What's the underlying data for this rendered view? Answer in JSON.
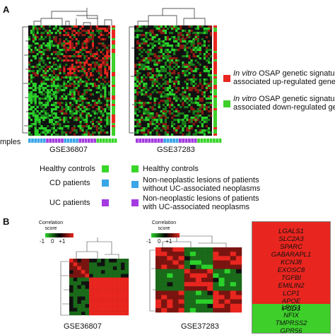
{
  "panel_a": {
    "label": "A",
    "partial_label": "mples",
    "heatmaps": [
      {
        "caption": "GSE36807"
      },
      {
        "caption": "GSE37283"
      }
    ],
    "signature_legend": [
      {
        "line1_italic": "In vitro",
        "line1_rest": " OSAP genetic signatur",
        "line2": "associated up-regulated gene",
        "color": "#e8261f"
      },
      {
        "line1_italic": "In vitro",
        "line1_rest": " OSAP genetic signatur",
        "line2": "associated down-regulated ge",
        "color": "#3ecf2a"
      }
    ],
    "sample_legend_left": [
      {
        "label": "Healthy controls",
        "color": "#39d62a"
      },
      {
        "label": "CD patients",
        "color": "#3aa6e8"
      },
      {
        "label": "UC patients",
        "color": "#a53be0"
      }
    ],
    "sample_legend_right": [
      {
        "line1": "Healthy controls",
        "line2": "",
        "color": "#39d62a"
      },
      {
        "line1": "Non-neoplastic lesions of patients",
        "line2": "without UC-associated neoplasms",
        "color": "#3aa6e8"
      },
      {
        "line1": "Non-neoplastic lesions of patients",
        "line2": "with UC-associated neoplasms",
        "color": "#a53be0"
      }
    ]
  },
  "panel_b": {
    "label": "B",
    "correlation": [
      {
        "caption": "GSE36807",
        "scale_title": "Correlation score",
        "ticks": [
          "-1",
          "0",
          "+1"
        ]
      },
      {
        "caption": "GSE37283",
        "scale_title": "Correlation score",
        "ticks": [
          "-1",
          "0",
          "+1"
        ]
      }
    ],
    "genes_up": [
      "LGALS1",
      "SLC2A3",
      "SPARC",
      "GABARAPL1",
      "KCNJ8",
      "EXOSC8",
      "TGFBI",
      "EMILIN2",
      "LCP1",
      "APOE",
      "FGD3"
    ],
    "genes_down": [
      "LRIG1",
      "NFIX",
      "TMPRSS2",
      "GPR56"
    ],
    "colors": {
      "up": "#e8261f",
      "down": "#3ecf2a"
    }
  }
}
